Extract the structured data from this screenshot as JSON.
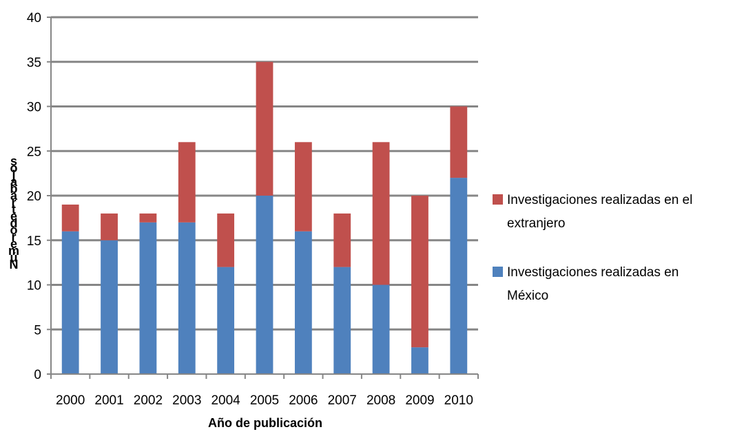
{
  "chart_data": {
    "type": "bar",
    "stacked": true,
    "title": "",
    "xlabel": "Año de publicación",
    "ylabel": "Número de trabajos",
    "categories": [
      "2000",
      "2001",
      "2002",
      "2003",
      "2004",
      "2005",
      "2006",
      "2007",
      "2008",
      "2009",
      "2010"
    ],
    "series": [
      {
        "name": "Investigaciones realizadas en México",
        "color": "#4f81bd",
        "values": [
          16,
          15,
          17,
          17,
          12,
          20,
          16,
          12,
          10,
          3,
          22
        ]
      },
      {
        "name": "Investigaciones realizadas en el extranjero",
        "color": "#c0504d",
        "values": [
          3,
          3,
          1,
          9,
          6,
          15,
          10,
          6,
          16,
          17,
          8
        ]
      }
    ],
    "ylim": [
      0,
      40
    ],
    "yticks": [
      0,
      5,
      10,
      15,
      20,
      25,
      30,
      35,
      40
    ],
    "grid": true,
    "legend": {
      "position": "right",
      "entries": [
        {
          "lines": [
            "Investigaciones realizadas en el",
            "extranjero"
          ],
          "color": "#c0504d"
        },
        {
          "lines": [
            "Investigaciones realizadas en",
            "México"
          ],
          "color": "#4f81bd"
        }
      ]
    }
  }
}
